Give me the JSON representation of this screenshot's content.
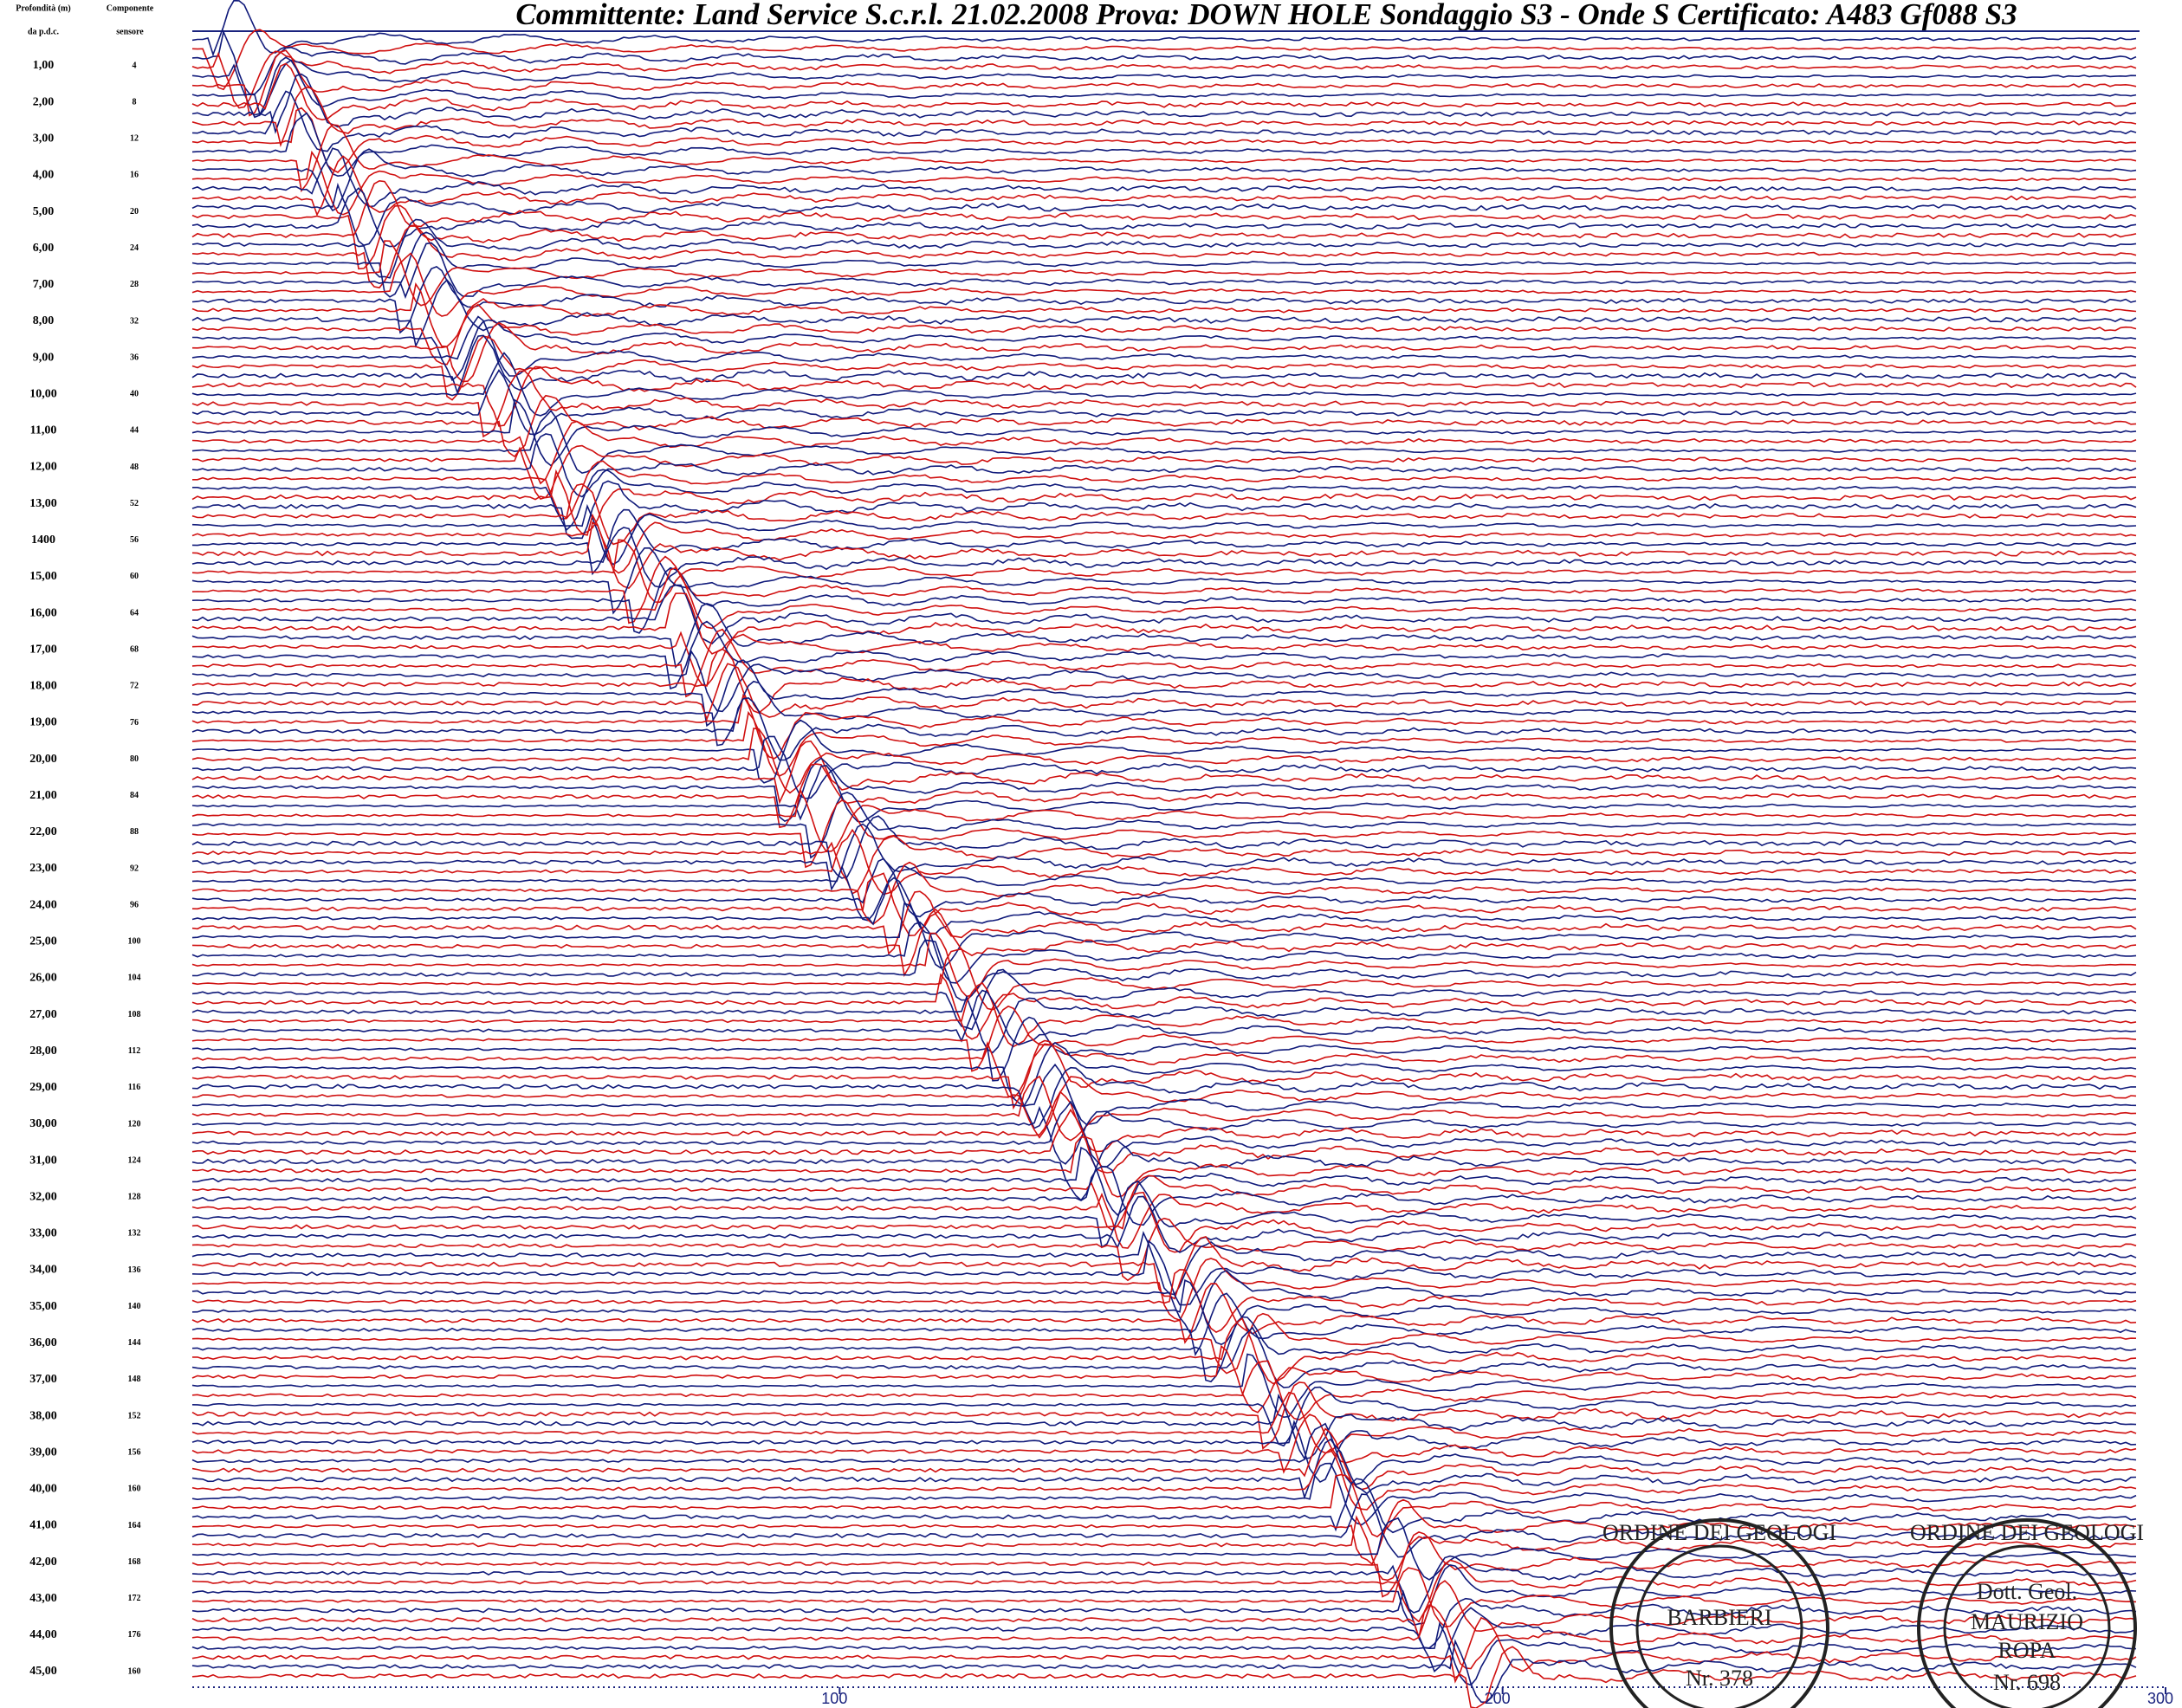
{
  "header": {
    "title": "Committente: Land Service  S.c.r.l.  21.02.2008 Prova: DOWN HOLE Sondaggio S3 - Onde S  Certificato: A483 Gf088 S3",
    "depth_header": [
      "Profondità (m)",
      "da p.d.c."
    ],
    "sensor_header": [
      "Componente",
      "sensore"
    ]
  },
  "rows": [
    {
      "depth": "1,00",
      "sensor": "4"
    },
    {
      "depth": "2,00",
      "sensor": "8"
    },
    {
      "depth": "3,00",
      "sensor": "12"
    },
    {
      "depth": "4,00",
      "sensor": "16"
    },
    {
      "depth": "5,00",
      "sensor": "20"
    },
    {
      "depth": "6,00",
      "sensor": "24"
    },
    {
      "depth": "7,00",
      "sensor": "28"
    },
    {
      "depth": "8,00",
      "sensor": "32"
    },
    {
      "depth": "9,00",
      "sensor": "36"
    },
    {
      "depth": "10,00",
      "sensor": "40"
    },
    {
      "depth": "11,00",
      "sensor": "44"
    },
    {
      "depth": "12,00",
      "sensor": "48"
    },
    {
      "depth": "13,00",
      "sensor": "52"
    },
    {
      "depth": "1400",
      "sensor": "56"
    },
    {
      "depth": "15,00",
      "sensor": "60"
    },
    {
      "depth": "16,00",
      "sensor": "64"
    },
    {
      "depth": "17,00",
      "sensor": "68"
    },
    {
      "depth": "18,00",
      "sensor": "72"
    },
    {
      "depth": "19,00",
      "sensor": "76"
    },
    {
      "depth": "20,00",
      "sensor": "80"
    },
    {
      "depth": "21,00",
      "sensor": "84"
    },
    {
      "depth": "22,00",
      "sensor": "88"
    },
    {
      "depth": "23,00",
      "sensor": "92"
    },
    {
      "depth": "24,00",
      "sensor": "96"
    },
    {
      "depth": "25,00",
      "sensor": "100"
    },
    {
      "depth": "26,00",
      "sensor": "104"
    },
    {
      "depth": "27,00",
      "sensor": "108"
    },
    {
      "depth": "28,00",
      "sensor": "112"
    },
    {
      "depth": "29,00",
      "sensor": "116"
    },
    {
      "depth": "30,00",
      "sensor": "120"
    },
    {
      "depth": "31,00",
      "sensor": "124"
    },
    {
      "depth": "32,00",
      "sensor": "128"
    },
    {
      "depth": "33,00",
      "sensor": "132"
    },
    {
      "depth": "34,00",
      "sensor": "136"
    },
    {
      "depth": "35,00",
      "sensor": "140"
    },
    {
      "depth": "36,00",
      "sensor": "144"
    },
    {
      "depth": "37,00",
      "sensor": "148"
    },
    {
      "depth": "38,00",
      "sensor": "152"
    },
    {
      "depth": "39,00",
      "sensor": "156"
    },
    {
      "depth": "40,00",
      "sensor": "160"
    },
    {
      "depth": "41,00",
      "sensor": "164"
    },
    {
      "depth": "42,00",
      "sensor": "168"
    },
    {
      "depth": "43,00",
      "sensor": "172"
    },
    {
      "depth": "44,00",
      "sensor": "176"
    },
    {
      "depth": "45,00",
      "sensor": "160"
    }
  ],
  "x_axis": {
    "xlim": [
      0,
      300
    ],
    "xticks": [
      100,
      200,
      300
    ]
  },
  "stamps": [
    {
      "ring": "ORDINE DEI GEOLOGI",
      "name": "BARBIERI",
      "number": "Nr. 378"
    },
    {
      "ring": "ORDINE DEI GEOLOGI",
      "title": "Dott. Geol.",
      "name": "MAURIZIO",
      "surname": "ROPA",
      "number": "Nr. 698"
    }
  ]
}
